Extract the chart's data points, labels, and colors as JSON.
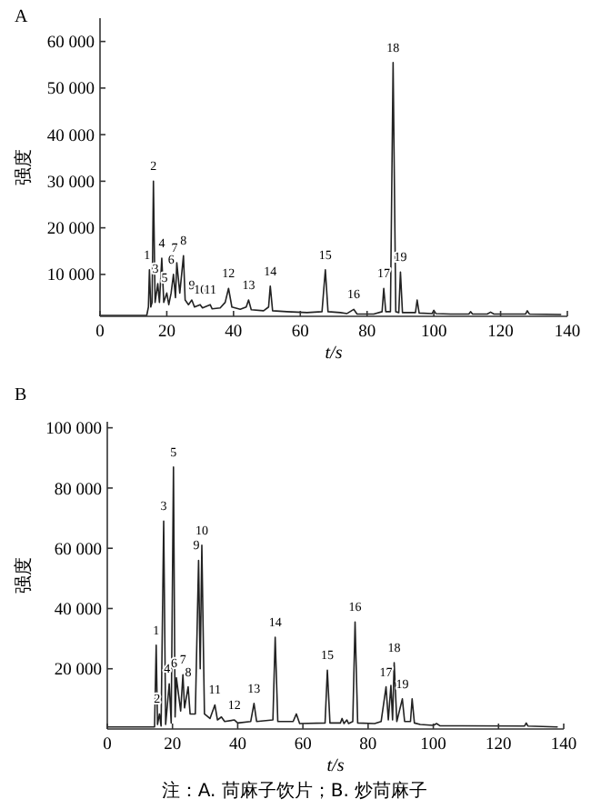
{
  "chart_data": [
    {
      "type": "line",
      "title": "A",
      "xlabel": "t/s",
      "ylabel": "强度",
      "xlim": [
        0,
        140
      ],
      "xticks": [
        0,
        20,
        40,
        60,
        80,
        100,
        120,
        140
      ],
      "ylim": [
        1000,
        65000
      ],
      "yticks": [
        {
          "value": 10000,
          "label": "10 000"
        },
        {
          "value": 20000,
          "label": "20 000"
        },
        {
          "value": 30000,
          "label": "30 000"
        },
        {
          "value": 40000,
          "label": "40 000"
        },
        {
          "value": 50000,
          "label": "50 000"
        },
        {
          "value": 60000,
          "label": "60 000"
        }
      ],
      "grid": false,
      "marker": "none",
      "line_style": "solid",
      "series": [
        {
          "color": "#222222",
          "x": [
            0,
            14,
            14.5,
            14.8,
            15.2,
            15.6,
            16,
            16.5,
            17.3,
            17.8,
            18.5,
            19.1,
            20,
            20.6,
            21.3,
            22,
            22.6,
            23,
            23.9,
            25,
            25.5,
            26.5,
            27.5,
            28.3,
            30,
            30.7,
            33,
            33.6,
            36,
            37.5,
            38.5,
            39.5,
            42,
            43.8,
            44.5,
            45.3,
            49,
            50.5,
            51,
            51.7,
            56,
            62,
            66.5,
            67.5,
            68.3,
            72,
            74,
            76,
            77,
            82,
            84.5,
            85,
            85.6,
            87,
            87.8,
            88.6,
            89.5,
            90,
            90.6,
            94.5,
            95,
            95.6,
            99.5,
            100,
            100.6,
            105,
            110.5,
            111,
            111.6,
            116,
            117,
            118,
            127.5,
            128,
            128.6,
            138
          ],
          "values": [
            1200,
            1200,
            3000,
            11000,
            3000,
            4000,
            30000,
            4000,
            8000,
            4000,
            13500,
            4000,
            6000,
            3500,
            6000,
            10000,
            5000,
            12500,
            6000,
            14000,
            4500,
            3500,
            4500,
            3000,
            3500,
            2800,
            3500,
            2600,
            2800,
            4000,
            7000,
            3000,
            2500,
            3000,
            4500,
            2400,
            2200,
            3000,
            7500,
            2200,
            2000,
            1800,
            2000,
            11000,
            2000,
            1800,
            1600,
            2500,
            1500,
            1500,
            2000,
            7000,
            2000,
            2000,
            55500,
            2000,
            1800,
            10500,
            1800,
            1800,
            4500,
            1700,
            1600,
            2300,
            1600,
            1500,
            1500,
            2000,
            1500,
            1500,
            1900,
            1500,
            1500,
            2200,
            1500,
            1400
          ]
        }
      ],
      "annotations": [
        {
          "text": "1",
          "x": 14.8,
          "y": 11000
        },
        {
          "text": "2",
          "x": 16,
          "y": 30000
        },
        {
          "text": "3",
          "x": 17.3,
          "y": 8000
        },
        {
          "text": "4",
          "x": 18.5,
          "y": 13500
        },
        {
          "text": "5",
          "x": 20,
          "y": 6000
        },
        {
          "text": "6",
          "x": 22,
          "y": 10000
        },
        {
          "text": "7",
          "x": 23,
          "y": 12500
        },
        {
          "text": "8",
          "x": 25,
          "y": 14000
        },
        {
          "text": "9",
          "x": 27.5,
          "y": 4500
        },
        {
          "text": "10",
          "x": 30,
          "y": 3500
        },
        {
          "text": "11",
          "x": 33,
          "y": 3500
        },
        {
          "text": "12",
          "x": 38.5,
          "y": 7000
        },
        {
          "text": "13",
          "x": 44.5,
          "y": 4500
        },
        {
          "text": "14",
          "x": 51,
          "y": 7500
        },
        {
          "text": "15",
          "x": 67.5,
          "y": 11000
        },
        {
          "text": "16",
          "x": 76,
          "y": 2500
        },
        {
          "text": "17",
          "x": 85,
          "y": 7000
        },
        {
          "text": "18",
          "x": 87.8,
          "y": 55500
        },
        {
          "text": "19",
          "x": 90,
          "y": 10500
        }
      ]
    },
    {
      "type": "line",
      "title": "B",
      "xlabel": "t/s",
      "ylabel": "强度",
      "xlim": [
        0,
        140
      ],
      "xticks": [
        0,
        20,
        40,
        60,
        80,
        100,
        120,
        140
      ],
      "ylim": [
        0,
        102000
      ],
      "yticks": [
        {
          "value": 20000,
          "label": "20 000"
        },
        {
          "value": 40000,
          "label": "40 000"
        },
        {
          "value": 60000,
          "label": "60 000"
        },
        {
          "value": 80000,
          "label": "80 000"
        },
        {
          "value": 100000,
          "label": "100 000"
        }
      ],
      "grid": false,
      "marker": "none",
      "line_style": "solid",
      "series": [
        {
          "color": "#222222",
          "x": [
            0,
            14.5,
            15,
            15.4,
            16,
            16.5,
            17.3,
            17.9,
            19,
            19.6,
            20.3,
            20.8,
            21.2,
            22.5,
            23.2,
            23.7,
            24.8,
            25.4,
            27,
            28,
            28.5,
            29,
            29.8,
            31.5,
            33,
            33.8,
            35,
            36,
            39,
            40,
            44,
            45,
            45.8,
            50.8,
            51.5,
            52.3,
            57,
            58,
            59,
            66.8,
            67.5,
            68.3,
            71.5,
            72,
            72.6,
            73.5,
            74,
            75.3,
            76,
            76.8,
            82,
            84,
            85.5,
            86.2,
            87,
            87.5,
            88,
            88.8,
            90.5,
            91.2,
            93,
            93.5,
            94.2,
            96,
            100,
            101,
            102,
            128,
            128.5,
            129,
            138
          ],
          "values": [
            700,
            700,
            27800,
            1500,
            5000,
            1000,
            69000,
            1500,
            15000,
            2000,
            87000,
            4000,
            17000,
            6000,
            18000,
            7000,
            14000,
            5000,
            5000,
            56000,
            20000,
            61000,
            5000,
            3500,
            8000,
            3000,
            4000,
            2500,
            3000,
            2000,
            2500,
            8500,
            2500,
            3000,
            30500,
            2500,
            2500,
            5000,
            1800,
            2000,
            19500,
            2000,
            2000,
            3500,
            1800,
            3000,
            1800,
            2500,
            35500,
            2000,
            1800,
            2500,
            14000,
            3000,
            14500,
            3000,
            22000,
            2500,
            10000,
            2500,
            2500,
            10000,
            2000,
            1500,
            1200,
            1800,
            1100,
            1000,
            2000,
            1000,
            700
          ]
        }
      ],
      "annotations": [
        {
          "text": "1",
          "x": 15,
          "y": 27800
        },
        {
          "text": "2",
          "x": 16,
          "y": 5000
        },
        {
          "text": "3",
          "x": 17.3,
          "y": 69000
        },
        {
          "text": "4",
          "x": 19,
          "y": 15000
        },
        {
          "text": "5",
          "x": 20.3,
          "y": 87000
        },
        {
          "text": "6",
          "x": 21.2,
          "y": 17000
        },
        {
          "text": "7",
          "x": 23.2,
          "y": 18000
        },
        {
          "text": "8",
          "x": 24.8,
          "y": 14000
        },
        {
          "text": "9",
          "x": 28,
          "y": 56000
        },
        {
          "text": "10",
          "x": 29,
          "y": 61000
        },
        {
          "text": "11",
          "x": 33,
          "y": 8000
        },
        {
          "text": "12",
          "x": 39,
          "y": 3000
        },
        {
          "text": "13",
          "x": 45,
          "y": 8500
        },
        {
          "text": "14",
          "x": 51.5,
          "y": 30500
        },
        {
          "text": "15",
          "x": 67.5,
          "y": 19500
        },
        {
          "text": "16",
          "x": 76,
          "y": 35500
        },
        {
          "text": "17",
          "x": 85.5,
          "y": 14000
        },
        {
          "text": "18",
          "x": 88,
          "y": 22000
        },
        {
          "text": "19",
          "x": 90.5,
          "y": 10000
        },
        "注：A. 苘麻子饮片；B. 炒苘麻子"
      ]
    }
  ]
}
